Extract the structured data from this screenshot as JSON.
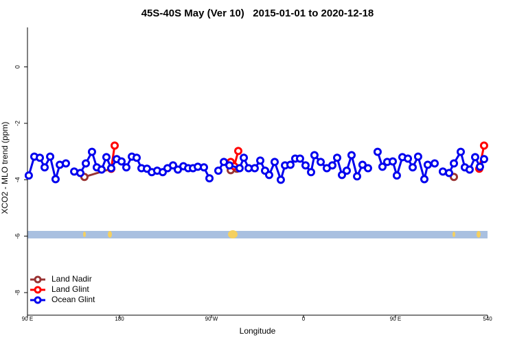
{
  "chart_data": {
    "type": "line",
    "title": "45S-40S May (Ver 10)   2015-01-01 to 2020-12-18",
    "x_label": "Longitude",
    "y_label": "XCO2 - MLO trend (ppm)",
    "xlim": [
      90,
      540
    ],
    "ylim": [
      -8.8,
      1.4
    ],
    "xticks": [
      {
        "value": 90,
        "label": "90 E"
      },
      180,
      {
        "value": 270,
        "label": "90 W"
      },
      {
        "value": 360,
        "label": "0"
      },
      {
        "value": 450,
        "label": "90 E"
      },
      540
    ],
    "yticks": [
      0,
      -2,
      -4,
      -6,
      -8
    ],
    "legend": "lower left",
    "series": [
      {
        "name": "Land Nadir",
        "color": "#993333",
        "x": [
          145.7,
          171.9,
          null,
          288.8,
          294.8,
          null,
          507.1
        ],
        "values": [
          -3.9,
          -3.61,
          null,
          -3.66,
          -3.61,
          null,
          -3.9
        ]
      },
      {
        "name": "Land Glint",
        "color": "#ff0000",
        "x": [
          171.9,
          175.3,
          null,
          288.8,
          292.2,
          296.2,
          null,
          531.9,
          536.6
        ],
        "values": [
          -3.61,
          -2.79,
          null,
          -3.37,
          -3.52,
          -2.98,
          null,
          -3.61,
          -2.79
        ]
      },
      {
        "name": "Ocean Glint",
        "color": "#0000ee",
        "x": [
          91.3,
          96.7,
          102.1,
          106.8,
          112.2,
          117.5,
          121.6,
          127.6,
          null,
          135.7,
          141.7,
          147.1,
          153.1,
          157.8,
          162.5,
          167.2,
          171.9,
          177.3,
          182,
          186.7,
          192.1,
          196.8,
          201.5,
          206.9,
          211.6,
          216.9,
          222.3,
          227,
          232.4,
          237.1,
          242.5,
          247.2,
          251.9,
          256.6,
          262.6,
          268,
          null,
          276.7,
          282.1,
          287.5,
          297.5,
          301.6,
          306.3,
          312.3,
          317.7,
          322.4,
          326.4,
          331.8,
          337.8,
          341.9,
          347.2,
          351.9,
          356.6,
          362,
          367.4,
          370.7,
          376.8,
          382.8,
          388.2,
          392.9,
          397.6,
          402.3,
          407,
          412.4,
          417.7,
          423.1,
          null,
          432.5,
          437.2,
          441.9,
          447.3,
          451.3,
          456.7,
          462.1,
          466.8,
          472.1,
          478.2,
          481.5,
          488.3,
          null,
          496.3,
          502.4,
          507.1,
          513.8,
          517.8,
          522.5,
          527.9,
          532.6,
          536.6
        ],
        "values": [
          -3.85,
          -3.18,
          -3.22,
          -3.56,
          -3.18,
          -3.98,
          -3.47,
          -3.42,
          null,
          -3.71,
          -3.76,
          -3.42,
          -3.01,
          -3.56,
          -3.64,
          -3.2,
          -3.59,
          -3.27,
          -3.35,
          -3.56,
          -3.18,
          -3.22,
          -3.59,
          -3.61,
          -3.73,
          -3.68,
          -3.73,
          -3.59,
          -3.49,
          -3.64,
          -3.52,
          -3.59,
          -3.59,
          -3.54,
          -3.56,
          -3.95,
          null,
          -3.68,
          -3.37,
          -3.49,
          -3.59,
          -3.22,
          -3.59,
          -3.59,
          -3.32,
          -3.68,
          -3.83,
          -3.37,
          -4.0,
          -3.49,
          -3.47,
          -3.25,
          -3.25,
          -3.49,
          -3.73,
          -3.13,
          -3.37,
          -3.59,
          -3.49,
          -3.22,
          -3.83,
          -3.68,
          -3.13,
          -3.88,
          -3.47,
          -3.59,
          null,
          -3.01,
          -3.54,
          -3.37,
          -3.35,
          -3.85,
          -3.2,
          -3.25,
          -3.56,
          -3.18,
          -3.98,
          -3.47,
          -3.42,
          null,
          -3.71,
          -3.76,
          -3.42,
          -3.01,
          -3.56,
          -3.64,
          -3.2,
          -3.54,
          -3.27
        ]
      }
    ]
  }
}
